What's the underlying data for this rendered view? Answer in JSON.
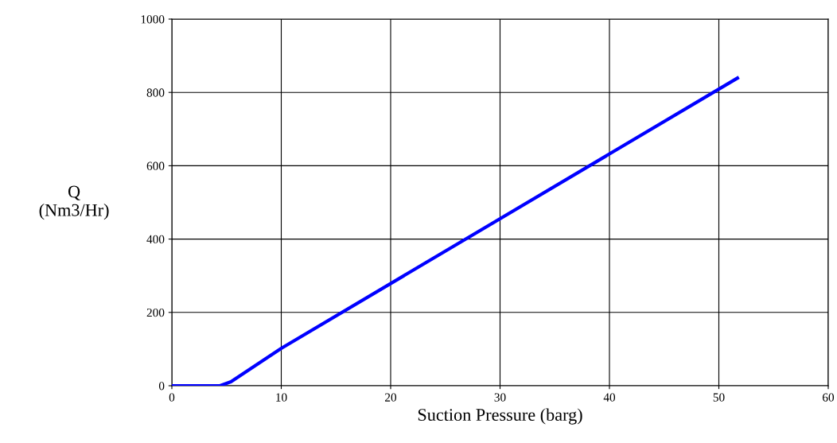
{
  "chart_data": {
    "type": "line",
    "xlabel": "Suction Pressure (barg)",
    "ylabel": "Q\n(Nm3/Hr)",
    "x": [
      0,
      4.4,
      5.4,
      10,
      51.7
    ],
    "series": [
      {
        "color": "#0000ff",
        "values": [
          0,
          0,
          11,
          102,
          839
        ]
      }
    ],
    "xlim": [
      0,
      60
    ],
    "xticks": [
      0,
      10,
      20,
      30,
      40,
      50,
      60
    ],
    "ylim": [
      0,
      1000
    ],
    "yticks": [
      0,
      200,
      400,
      600,
      800,
      1000
    ],
    "grid": true,
    "legend": false,
    "marker": "none",
    "line_style": "solid"
  }
}
